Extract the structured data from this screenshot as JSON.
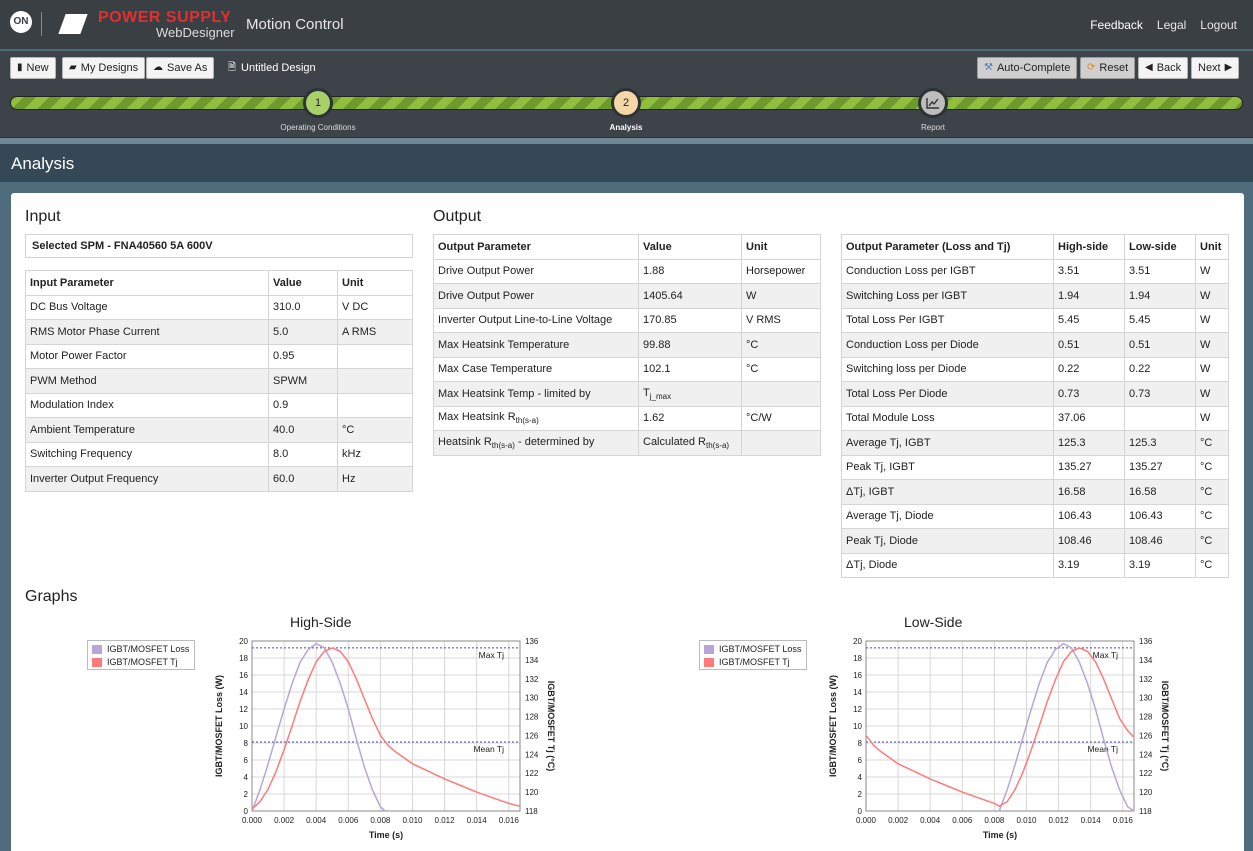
{
  "header": {
    "on_logo": "ON",
    "brand_top": "POWER SUPPLY",
    "brand_sub": "WebDesigner",
    "app_title": "Motion Control",
    "links": [
      "Feedback",
      "Legal",
      "Logout"
    ]
  },
  "toolbar": {
    "new_label": "New",
    "my_designs_label": "My Designs",
    "save_as_label": "Save As",
    "design_title": "Untitled Design",
    "auto_complete_label": "Auto-Complete",
    "reset_label": "Reset",
    "back_label": "Back",
    "next_label": "Next"
  },
  "steps": [
    {
      "number": "1",
      "label": "Operating Conditions"
    },
    {
      "number": "2",
      "label": "Analysis"
    },
    {
      "icon": "chart-icon",
      "label": "Report"
    }
  ],
  "page_title": "Analysis",
  "input": {
    "heading": "Input",
    "selected_spm": "Selected SPM - FNA40560 5A 600V",
    "headers": [
      "Input Parameter",
      "Value",
      "Unit"
    ],
    "rows": [
      [
        "DC Bus Voltage",
        "310.0",
        "V DC"
      ],
      [
        "RMS Motor Phase Current",
        "5.0",
        "A RMS"
      ],
      [
        "Motor Power Factor",
        "0.95",
        ""
      ],
      [
        "PWM Method",
        "SPWM",
        ""
      ],
      [
        "Modulation Index",
        "0.9",
        ""
      ],
      [
        "Ambient Temperature",
        "40.0",
        "°C"
      ],
      [
        "Switching Frequency",
        "8.0",
        "kHz"
      ],
      [
        "Inverter Output Frequency",
        "60.0",
        "Hz"
      ]
    ]
  },
  "output": {
    "heading": "Output",
    "headers": [
      "Output Parameter",
      "Value",
      "Unit"
    ],
    "rows": [
      [
        "Drive Output Power",
        "1.88",
        "Horsepower"
      ],
      [
        "Drive Output Power",
        "1405.64",
        "W"
      ],
      [
        "Inverter Output Line-to-Line Voltage",
        "170.85",
        "V RMS"
      ],
      [
        "Max Heatsink Temperature",
        "99.88",
        "°C"
      ],
      [
        "Max Case Temperature",
        "102.1",
        "°C"
      ],
      [
        "Max Heatsink Temp - limited by",
        "Tj_max",
        ""
      ],
      [
        "Max Heatsink Rth(s-a)",
        "1.62",
        "°C/W"
      ],
      [
        "Heatsink Rth(s-a) - determined by",
        "Calculated Rth(s-a)",
        ""
      ]
    ]
  },
  "loss": {
    "headers": [
      "Output Parameter (Loss and Tj)",
      "High-side",
      "Low-side",
      "Unit"
    ],
    "rows": [
      [
        "Conduction Loss per IGBT",
        "3.51",
        "3.51",
        "W"
      ],
      [
        "Switching Loss per IGBT",
        "1.94",
        "1.94",
        "W"
      ],
      [
        "Total Loss Per IGBT",
        "5.45",
        "5.45",
        "W"
      ],
      [
        "Conduction Loss per Diode",
        "0.51",
        "0.51",
        "W"
      ],
      [
        "Switching loss per Diode",
        "0.22",
        "0.22",
        "W"
      ],
      [
        "Total Loss Per Diode",
        "0.73",
        "0.73",
        "W"
      ],
      [
        "Total Module Loss",
        "37.06",
        "",
        "W"
      ],
      [
        "Average Tj, IGBT",
        "125.3",
        "125.3",
        "°C"
      ],
      [
        "Peak Tj, IGBT",
        "135.27",
        "135.27",
        "°C"
      ],
      [
        "ΔTj, IGBT",
        "16.58",
        "16.58",
        "°C"
      ],
      [
        "Average Tj, Diode",
        "106.43",
        "106.43",
        "°C"
      ],
      [
        "Peak Tj, Diode",
        "108.46",
        "108.46",
        "°C"
      ],
      [
        "ΔTj, Diode",
        "3.19",
        "3.19",
        "°C"
      ]
    ]
  },
  "graphs_heading": "Graphs",
  "chart_data": [
    {
      "type": "line",
      "title": "High-Side",
      "xlabel": "Time (s)",
      "ylabel": "IGBT/MOSFET Loss (W)",
      "y2label": "IGBT/MOSFET Tj (°C)",
      "xlim": [
        0,
        0.0167
      ],
      "ylim": [
        0,
        20
      ],
      "y2lim": [
        118,
        136
      ],
      "xticks": [
        "0.000",
        "0.002",
        "0.004",
        "0.006",
        "0.008",
        "0.010",
        "0.012",
        "0.014",
        "0.016"
      ],
      "yticks": [
        "0",
        "2",
        "4",
        "6",
        "8",
        "10",
        "12",
        "14",
        "16",
        "18",
        "20"
      ],
      "y2ticks": [
        "118",
        "120",
        "122",
        "124",
        "126",
        "128",
        "130",
        "132",
        "134",
        "136"
      ],
      "legend": [
        "IGBT/MOSFET Loss",
        "IGBT/MOSFET Tj"
      ],
      "colors": {
        "loss": "#b8a6d6",
        "tj": "#ff7b7b",
        "ref": "#4b4ba8"
      },
      "annotations": [
        {
          "label": "Max Tj",
          "y2": 135.27
        },
        {
          "label": "Mean Tj",
          "y2": 125.3
        }
      ],
      "series": [
        {
          "name": "IGBT/MOSFET Loss",
          "axis": "left",
          "x": [
            0,
            0.0005,
            0.001,
            0.0015,
            0.002,
            0.0025,
            0.003,
            0.0035,
            0.004,
            0.0045,
            0.005,
            0.0055,
            0.006,
            0.0065,
            0.007,
            0.0075,
            0.008,
            0.0083
          ],
          "y": [
            0,
            2.5,
            5.5,
            8.8,
            12,
            15,
            17.5,
            19,
            19.7,
            19.2,
            17.5,
            15,
            12,
            8.5,
            5.2,
            2.5,
            0.5,
            0
          ]
        },
        {
          "name": "IGBT/MOSFET Tj",
          "axis": "right",
          "x": [
            0,
            0.0005,
            0.001,
            0.0015,
            0.002,
            0.0025,
            0.003,
            0.0035,
            0.004,
            0.0045,
            0.005,
            0.0055,
            0.006,
            0.0065,
            0.007,
            0.0075,
            0.008,
            0.0085,
            0.009,
            0.0095,
            0.01,
            0.011,
            0.012,
            0.013,
            0.014,
            0.015,
            0.016,
            0.0167
          ],
          "y": [
            118.2,
            119.0,
            120.3,
            122.2,
            124.5,
            127.0,
            129.6,
            131.9,
            133.8,
            134.9,
            135.27,
            134.9,
            133.8,
            132.0,
            129.9,
            127.8,
            126.0,
            124.9,
            124.2,
            123.6,
            123.0,
            122.2,
            121.4,
            120.7,
            120.0,
            119.4,
            118.8,
            118.5
          ]
        }
      ]
    },
    {
      "type": "line",
      "title": "Low-Side",
      "xlabel": "Time (s)",
      "ylabel": "IGBT/MOSFET Loss (W)",
      "y2label": "IGBT/MOSFET Tj (°C)",
      "xlim": [
        0,
        0.0167
      ],
      "ylim": [
        0,
        20
      ],
      "y2lim": [
        118,
        136
      ],
      "xticks": [
        "0.000",
        "0.002",
        "0.004",
        "0.006",
        "0.008",
        "0.010",
        "0.012",
        "0.014",
        "0.016"
      ],
      "yticks": [
        "0",
        "2",
        "4",
        "6",
        "8",
        "10",
        "12",
        "14",
        "16",
        "18",
        "20"
      ],
      "y2ticks": [
        "118",
        "120",
        "122",
        "124",
        "126",
        "128",
        "130",
        "132",
        "134",
        "136"
      ],
      "legend": [
        "IGBT/MOSFET Loss",
        "IGBT/MOSFET Tj"
      ],
      "colors": {
        "loss": "#b8a6d6",
        "tj": "#ff7b7b",
        "ref": "#4b4ba8"
      },
      "annotations": [
        {
          "label": "Max Tj",
          "y2": 135.27
        },
        {
          "label": "Mean Tj",
          "y2": 125.3
        }
      ],
      "series": [
        {
          "name": "IGBT/MOSFET Loss",
          "axis": "left",
          "x": [
            0.0083,
            0.0088,
            0.0093,
            0.0098,
            0.0103,
            0.0108,
            0.0113,
            0.0118,
            0.0123,
            0.0128,
            0.0133,
            0.0138,
            0.0143,
            0.0148,
            0.0153,
            0.0158,
            0.0163,
            0.0167
          ],
          "y": [
            0,
            2.5,
            5.5,
            8.8,
            12,
            15,
            17.5,
            19,
            19.7,
            19.2,
            17.5,
            15,
            12,
            8.5,
            5.2,
            2.5,
            0.5,
            0
          ]
        },
        {
          "name": "IGBT/MOSFET Tj",
          "axis": "right",
          "x": [
            0,
            0.0005,
            0.001,
            0.002,
            0.003,
            0.004,
            0.005,
            0.006,
            0.007,
            0.008,
            0.0083,
            0.0088,
            0.0093,
            0.0098,
            0.0103,
            0.0108,
            0.0113,
            0.0118,
            0.0123,
            0.0128,
            0.0133,
            0.0138,
            0.0143,
            0.0148,
            0.0153,
            0.0158,
            0.0163,
            0.0167
          ],
          "y": [
            126.0,
            124.9,
            124.2,
            123.0,
            122.2,
            121.4,
            120.7,
            120.0,
            119.4,
            118.8,
            118.5,
            119.0,
            120.3,
            122.2,
            124.5,
            127.0,
            129.6,
            131.9,
            133.8,
            134.9,
            135.27,
            134.9,
            133.8,
            132.0,
            129.9,
            127.8,
            126.5,
            125.8
          ]
        }
      ]
    }
  ]
}
